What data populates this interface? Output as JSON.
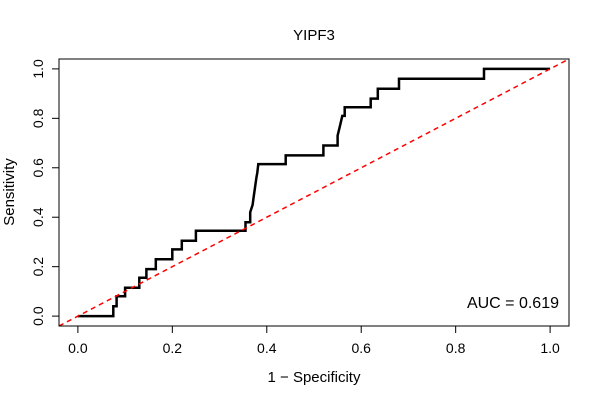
{
  "chart_data": {
    "type": "line",
    "title": "YIPF3",
    "xlabel": "1 − Specificity",
    "ylabel": "Sensitivity",
    "xlim": [
      -0.04,
      1.04
    ],
    "ylim": [
      -0.04,
      1.04
    ],
    "x_ticks": [
      0.0,
      0.2,
      0.4,
      0.6,
      0.8,
      1.0
    ],
    "x_tick_labels": [
      "0.0",
      "0.2",
      "0.4",
      "0.6",
      "0.8",
      "1.0"
    ],
    "y_ticks": [
      0.0,
      0.2,
      0.4,
      0.6,
      0.8,
      1.0
    ],
    "y_tick_labels": [
      "0.0",
      "0.2",
      "0.4",
      "0.6",
      "0.8",
      "1.0"
    ],
    "grid": false,
    "annotation": "AUC = 0.619",
    "series": [
      {
        "color": "#000000",
        "style": "solid",
        "points": [
          [
            0.0,
            0.0
          ],
          [
            0.075,
            0.0
          ],
          [
            0.075,
            0.04
          ],
          [
            0.082,
            0.04
          ],
          [
            0.082,
            0.08
          ],
          [
            0.1,
            0.08
          ],
          [
            0.1,
            0.115
          ],
          [
            0.13,
            0.115
          ],
          [
            0.13,
            0.155
          ],
          [
            0.145,
            0.155
          ],
          [
            0.145,
            0.19
          ],
          [
            0.165,
            0.19
          ],
          [
            0.165,
            0.23
          ],
          [
            0.2,
            0.23
          ],
          [
            0.2,
            0.27
          ],
          [
            0.22,
            0.27
          ],
          [
            0.22,
            0.305
          ],
          [
            0.25,
            0.305
          ],
          [
            0.25,
            0.345
          ],
          [
            0.355,
            0.345
          ],
          [
            0.355,
            0.38
          ],
          [
            0.365,
            0.38
          ],
          [
            0.365,
            0.42
          ],
          [
            0.37,
            0.45
          ],
          [
            0.372,
            0.48
          ],
          [
            0.375,
            0.52
          ],
          [
            0.378,
            0.56
          ],
          [
            0.38,
            0.58
          ],
          [
            0.382,
            0.615
          ],
          [
            0.44,
            0.615
          ],
          [
            0.44,
            0.65
          ],
          [
            0.52,
            0.65
          ],
          [
            0.52,
            0.69
          ],
          [
            0.55,
            0.69
          ],
          [
            0.55,
            0.73
          ],
          [
            0.555,
            0.77
          ],
          [
            0.56,
            0.81
          ],
          [
            0.565,
            0.81
          ],
          [
            0.565,
            0.845
          ],
          [
            0.62,
            0.845
          ],
          [
            0.62,
            0.88
          ],
          [
            0.635,
            0.88
          ],
          [
            0.635,
            0.92
          ],
          [
            0.68,
            0.92
          ],
          [
            0.68,
            0.96
          ],
          [
            0.86,
            0.96
          ],
          [
            0.86,
            1.0
          ],
          [
            1.0,
            1.0
          ]
        ]
      },
      {
        "color": "#ff0000",
        "style": "dashed",
        "points": [
          [
            -0.04,
            -0.04
          ],
          [
            1.04,
            1.04
          ]
        ]
      }
    ]
  }
}
